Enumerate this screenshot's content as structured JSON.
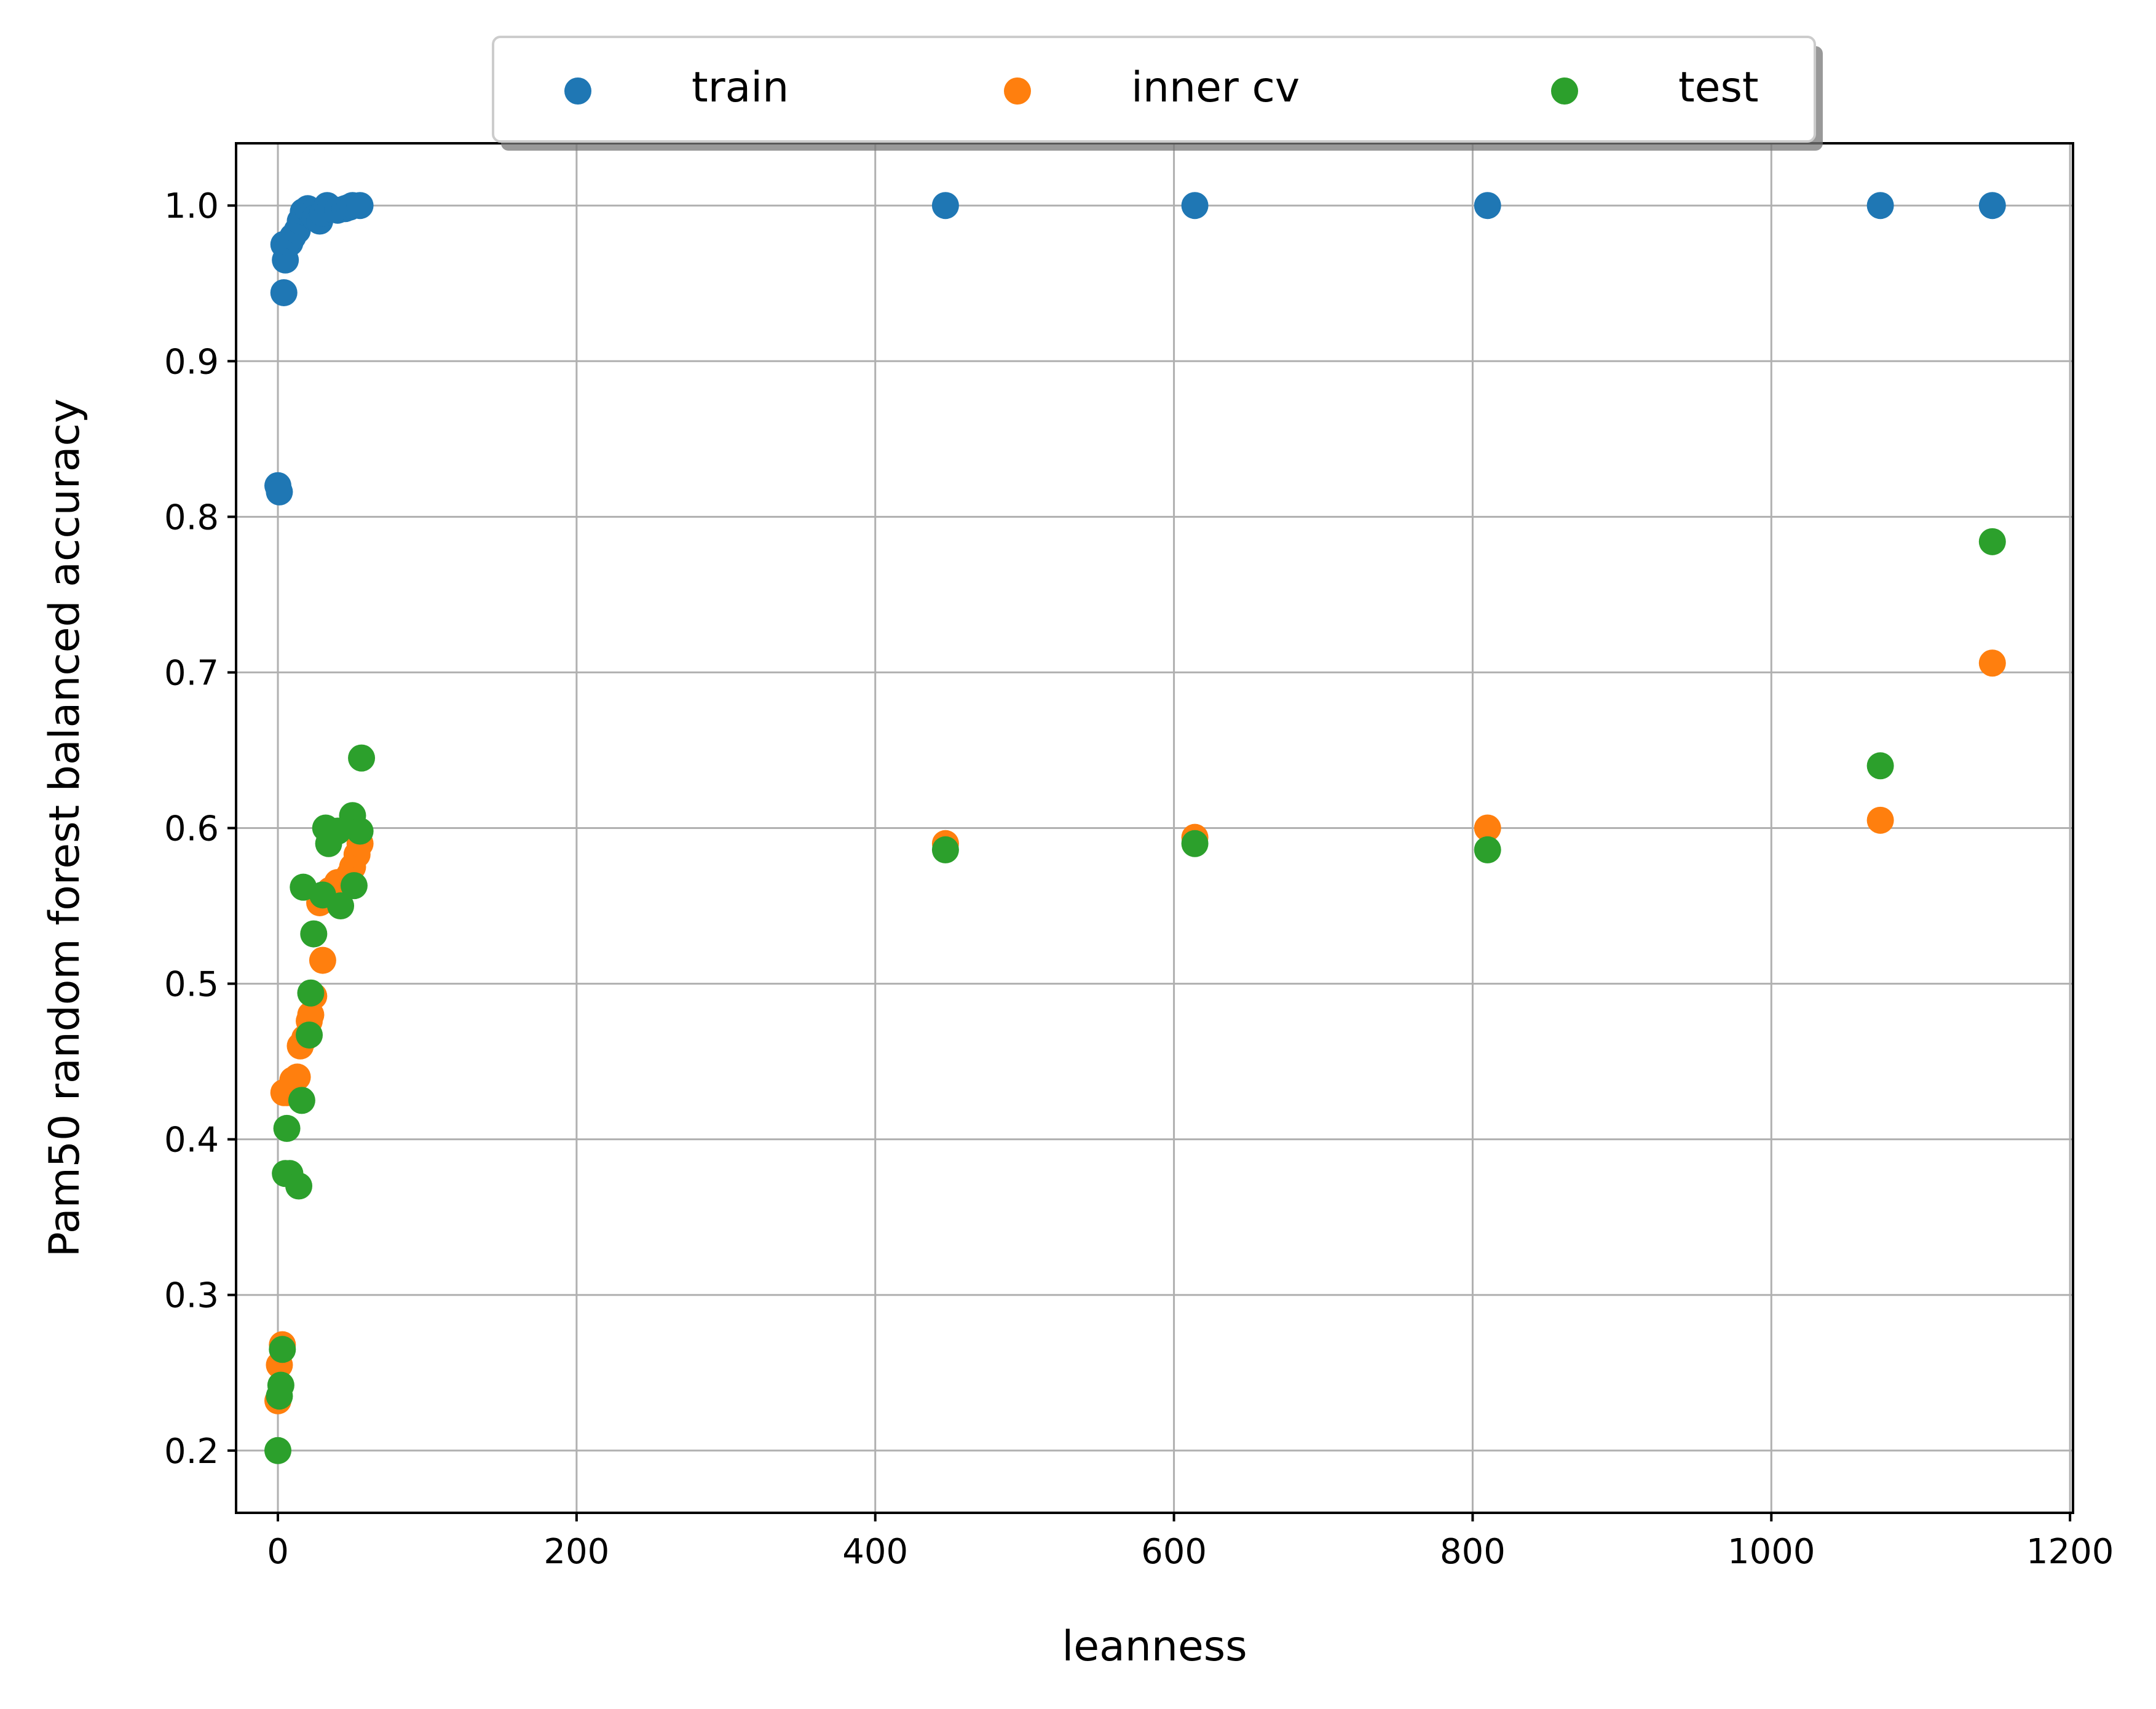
{
  "chart_data": {
    "type": "scatter",
    "title": "",
    "xlabel": "leanness",
    "ylabel": "Pam50 random forest balanced accuracy",
    "xlim": [
      -28,
      1202
    ],
    "ylim": [
      0.16,
      1.04
    ],
    "xticks": [
      0,
      200,
      400,
      600,
      800,
      1000,
      1200
    ],
    "xtick_labels": [
      "0",
      "200",
      "400",
      "600",
      "800",
      "1000",
      "1200"
    ],
    "yticks": [
      0.2,
      0.3,
      0.4,
      0.5,
      0.6,
      0.7,
      0.8,
      0.9,
      1.0
    ],
    "ytick_labels": [
      "0.2",
      "0.3",
      "0.4",
      "0.5",
      "0.6",
      "0.7",
      "0.8",
      "0.9",
      "1.0"
    ],
    "grid": true,
    "legend": {
      "position": "top-center",
      "columns": 3,
      "shadow": true
    },
    "series": [
      {
        "name": "train",
        "color": "#1f77b4",
        "points": [
          [
            0,
            0.82
          ],
          [
            1,
            0.816
          ],
          [
            4,
            0.944
          ],
          [
            4,
            0.975
          ],
          [
            5,
            0.965
          ],
          [
            8,
            0.976
          ],
          [
            10,
            0.98
          ],
          [
            13,
            0.984
          ],
          [
            15,
            0.99
          ],
          [
            17,
            0.996
          ],
          [
            20,
            0.998
          ],
          [
            23,
            0.995
          ],
          [
            25,
            0.992
          ],
          [
            28,
            0.99
          ],
          [
            30,
            0.995
          ],
          [
            33,
            1.0
          ],
          [
            35,
            0.998
          ],
          [
            40,
            0.997
          ],
          [
            45,
            0.998
          ],
          [
            48,
            0.999
          ],
          [
            50,
            1.0
          ],
          [
            55,
            1.0
          ],
          [
            447,
            1.0
          ],
          [
            614,
            1.0
          ],
          [
            810,
            1.0
          ],
          [
            1073,
            1.0
          ],
          [
            1148,
            1.0
          ]
        ]
      },
      {
        "name": "inner cv",
        "color": "#ff7f0e",
        "points": [
          [
            0,
            0.232
          ],
          [
            1,
            0.255
          ],
          [
            3,
            0.268
          ],
          [
            4,
            0.43
          ],
          [
            6,
            0.43
          ],
          [
            10,
            0.438
          ],
          [
            13,
            0.44
          ],
          [
            15,
            0.46
          ],
          [
            18,
            0.465
          ],
          [
            21,
            0.476
          ],
          [
            22,
            0.48
          ],
          [
            24,
            0.492
          ],
          [
            28,
            0.552
          ],
          [
            30,
            0.515
          ],
          [
            35,
            0.56
          ],
          [
            40,
            0.565
          ],
          [
            44,
            0.565
          ],
          [
            48,
            0.57
          ],
          [
            50,
            0.575
          ],
          [
            53,
            0.583
          ],
          [
            55,
            0.59
          ],
          [
            447,
            0.59
          ],
          [
            614,
            0.594
          ],
          [
            810,
            0.6
          ],
          [
            1073,
            0.605
          ],
          [
            1148,
            0.706
          ]
        ]
      },
      {
        "name": "test",
        "color": "#2ca02c",
        "points": [
          [
            0,
            0.2
          ],
          [
            1,
            0.235
          ],
          [
            2,
            0.242
          ],
          [
            3,
            0.265
          ],
          [
            5,
            0.378
          ],
          [
            6,
            0.407
          ],
          [
            8,
            0.378
          ],
          [
            14,
            0.37
          ],
          [
            16,
            0.425
          ],
          [
            17,
            0.562
          ],
          [
            21,
            0.467
          ],
          [
            22,
            0.494
          ],
          [
            24,
            0.532
          ],
          [
            30,
            0.557
          ],
          [
            32,
            0.6
          ],
          [
            34,
            0.59
          ],
          [
            40,
            0.598
          ],
          [
            42,
            0.55
          ],
          [
            50,
            0.608
          ],
          [
            51,
            0.563
          ],
          [
            55,
            0.598
          ],
          [
            56,
            0.645
          ],
          [
            447,
            0.586
          ],
          [
            614,
            0.59
          ],
          [
            810,
            0.586
          ],
          [
            1073,
            0.64
          ],
          [
            1148,
            0.784
          ]
        ]
      }
    ]
  }
}
